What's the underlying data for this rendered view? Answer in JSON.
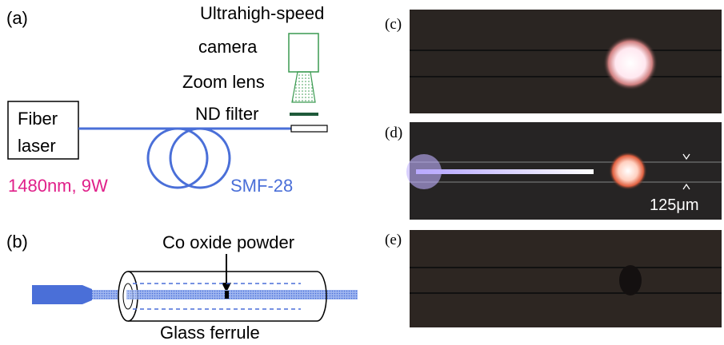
{
  "panel_a": {
    "label": "(a)",
    "camera_line1": "Ultrahigh-speed",
    "camera_line2": "camera",
    "zoom_lens": "Zoom lens",
    "nd_filter": "ND filter",
    "laser_line1": "Fiber",
    "laser_line2": "laser",
    "laser_spec": "1480nm, 9W",
    "fiber": "SMF-28"
  },
  "panel_b": {
    "label": "(b)",
    "powder": "Co oxide powder",
    "ferrule": "Glass ferrule"
  },
  "panel_c": {
    "label": "(c)"
  },
  "panel_d": {
    "label": "(d)",
    "scale": "125μm"
  },
  "panel_e": {
    "label": "(e)"
  }
}
